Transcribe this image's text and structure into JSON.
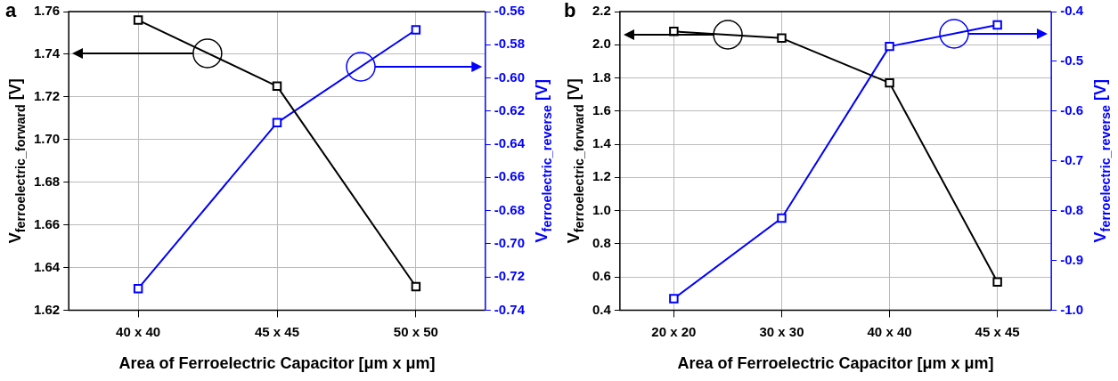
{
  "chart_data": [
    {
      "type": "line",
      "title": "a",
      "xlabel": "Area of Ferroelectric Capacitor [μm x μm]",
      "ylabel": "V$_{ferroelectric_forward}$ [V]",
      "y2label": "V$_{ferroelectric_reverse}$ [V]",
      "categories": [
        "40 x 40",
        "45 x 45",
        "50 x 50"
      ],
      "series": [
        {
          "color": "#000000",
          "values": [
            1.756,
            1.725,
            1.631
          ]
        },
        {
          "color": "#0000ff",
          "axis": "y2",
          "values": [
            -0.727,
            -0.627,
            -0.571
          ]
        }
      ],
      "ylim": [
        1.62,
        1.76
      ],
      "yticks": [
        1.62,
        {
          "value": 1.64,
          "label": "1.64"
        },
        {
          "value": 1.66,
          "label": "1.66"
        },
        {
          "value": 1.68,
          "label": "1.68"
        },
        {
          "value": 1.7,
          "label": "1.70"
        },
        {
          "value": 1.72,
          "label": "1.72"
        },
        {
          "value": 1.74,
          "label": "1.74"
        },
        {
          "value": 1.76,
          "label": "1.76"
        }
      ],
      "y2lim": [
        -0.74,
        -0.56
      ],
      "y2ticks": [
        -0.74,
        -0.72,
        {
          "value": -0.7,
          "label": "-0.70"
        },
        -0.68,
        -0.66,
        -0.64,
        -0.62,
        {
          "value": -0.6,
          "label": "-0.60"
        },
        -0.58,
        -0.56
      ],
      "grid": true,
      "legend": false,
      "marker": "square",
      "line_style": "solid"
    },
    {
      "type": "line",
      "title": "b",
      "xlabel": "Area of Ferroelectric Capacitor [μm x μm]",
      "ylabel": "V$_{ferroelectric_forward}$ [V]",
      "y2label": "V$_{ferroelectric_reverse}$ [V]",
      "categories": [
        "20 x 20",
        "30 x 30",
        "40 x 40",
        "45 x 45"
      ],
      "series": [
        {
          "color": "#000000",
          "values": [
            2.08,
            2.04,
            1.77,
            0.57
          ]
        },
        {
          "color": "#0000ff",
          "axis": "y2",
          "values": [
            -0.977,
            -0.815,
            -0.47,
            -0.427
          ]
        }
      ],
      "ylim": [
        0.4,
        2.2
      ],
      "yticks": [
        0.4,
        0.6,
        0.8,
        {
          "value": 1.0,
          "label": "1.0"
        },
        1.2,
        1.4,
        1.6,
        1.8,
        {
          "value": 2.0,
          "label": "2.0"
        },
        2.2
      ],
      "y2lim": [
        -1.0,
        -0.4
      ],
      "y2ticks": [
        {
          "value": -1.0,
          "label": "-1.0"
        },
        -0.9,
        -0.8,
        -0.7,
        -0.6,
        -0.5,
        -0.4
      ],
      "grid": true,
      "legend": false,
      "marker": "square",
      "line_style": "solid"
    }
  ]
}
